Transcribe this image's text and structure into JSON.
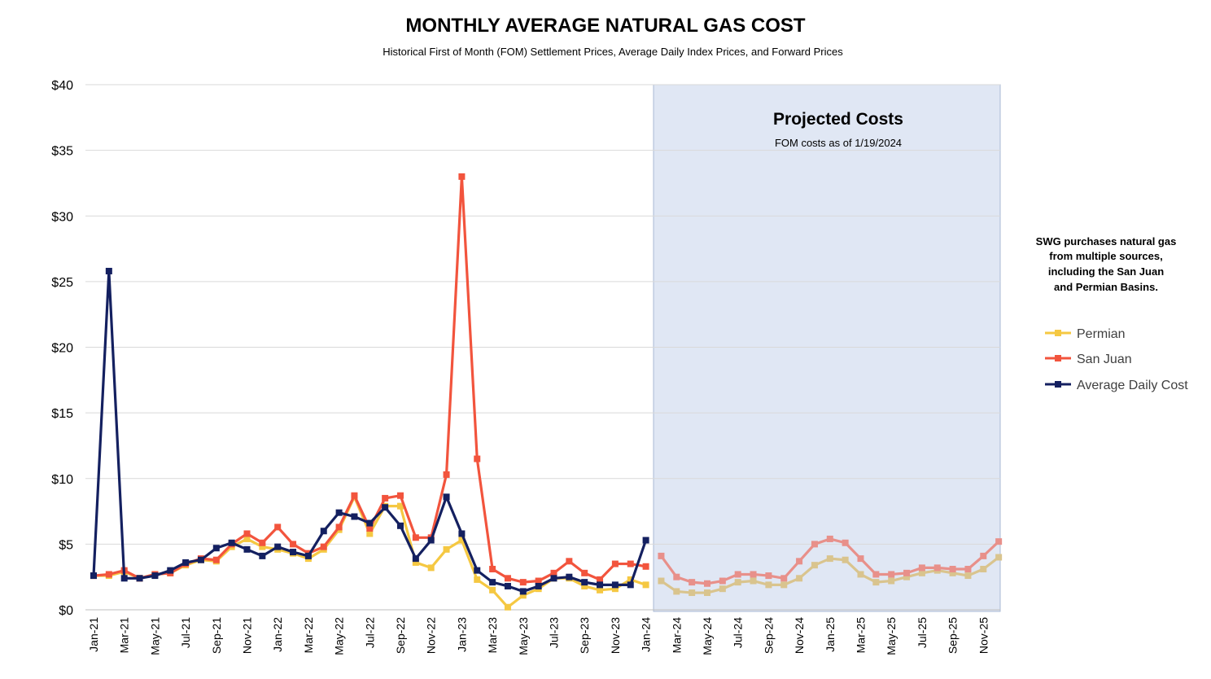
{
  "chart_data": {
    "type": "line",
    "title": "MONTHLY AVERAGE NATURAL GAS COST",
    "subtitle": "Historical First of Month (FOM) Settlement Prices, Average Daily Index Prices, and Forward Prices",
    "ylim": [
      0,
      40
    ],
    "y_ticks": [
      "$0",
      "$5",
      "$10",
      "$15",
      "$20",
      "$25",
      "$30",
      "$35",
      "$40"
    ],
    "y_tick_values": [
      0,
      5,
      10,
      15,
      20,
      25,
      30,
      35,
      40
    ],
    "x": [
      "Jan-21",
      "Feb-21",
      "Mar-21",
      "Apr-21",
      "May-21",
      "Jun-21",
      "Jul-21",
      "Aug-21",
      "Sep-21",
      "Oct-21",
      "Nov-21",
      "Dec-21",
      "Jan-22",
      "Feb-22",
      "Mar-22",
      "Apr-22",
      "May-22",
      "Jun-22",
      "Jul-22",
      "Aug-22",
      "Sep-22",
      "Oct-22",
      "Nov-22",
      "Dec-22",
      "Jan-23",
      "Feb-23",
      "Mar-23",
      "Apr-23",
      "May-23",
      "Jun-23",
      "Jul-23",
      "Aug-23",
      "Sep-23",
      "Oct-23",
      "Nov-23",
      "Dec-23",
      "Jan-24",
      "Feb-24",
      "Mar-24",
      "Apr-24",
      "May-24",
      "Jun-24",
      "Jul-24",
      "Aug-24",
      "Sep-24",
      "Oct-24",
      "Nov-24",
      "Dec-24",
      "Jan-25",
      "Feb-25",
      "Mar-25",
      "Apr-25",
      "May-25",
      "Jun-25",
      "Jul-25",
      "Aug-25",
      "Sep-25",
      "Oct-25",
      "Nov-25",
      "Dec-25"
    ],
    "x_tick_labels": [
      "Jan-21",
      "Mar-21",
      "May-21",
      "Jul-21",
      "Sep-21",
      "Nov-21",
      "Jan-22",
      "Mar-22",
      "May-22",
      "Jul-22",
      "Sep-22",
      "Nov-22",
      "Jan-23",
      "Mar-23",
      "May-23",
      "Jul-23",
      "Sep-23",
      "Nov-23",
      "Jan-24",
      "Mar-24",
      "May-24",
      "Jul-24",
      "Sep-24",
      "Nov-24",
      "Jan-25",
      "Mar-25",
      "May-25",
      "Jul-25",
      "Sep-25",
      "Nov-25"
    ],
    "projection_start": "Feb-24",
    "projection_label": "Projected Costs",
    "projection_sublabel": "FOM costs as of 1/19/2024",
    "series": [
      {
        "name": "Permian",
        "color": "#F5C842",
        "projected_color": "#D9C48E",
        "values": [
          2.6,
          2.6,
          2.9,
          2.4,
          2.7,
          2.8,
          3.4,
          3.8,
          3.7,
          4.8,
          5.4,
          4.8,
          4.6,
          4.3,
          3.9,
          4.6,
          6.1,
          8.6,
          5.8,
          7.9,
          7.9,
          3.6,
          3.2,
          4.6,
          5.3,
          2.3,
          1.5,
          0.2,
          1.1,
          1.6,
          2.4,
          2.4,
          1.8,
          1.5,
          1.6,
          2.3,
          1.9,
          2.2,
          1.4,
          1.3,
          1.3,
          1.6,
          2.1,
          2.2,
          1.9,
          1.9,
          2.4,
          3.4,
          3.9,
          3.8,
          2.7,
          2.1,
          2.2,
          2.5,
          2.8,
          3.0,
          2.8,
          2.6,
          3.1,
          4.0
        ]
      },
      {
        "name": "San Juan",
        "color": "#F2543D",
        "projected_color": "#E8908A",
        "values": [
          2.6,
          2.7,
          3.0,
          2.4,
          2.7,
          2.8,
          3.5,
          3.9,
          3.8,
          5.0,
          5.8,
          5.1,
          6.3,
          5.0,
          4.3,
          4.8,
          6.3,
          8.7,
          6.2,
          8.5,
          8.7,
          5.5,
          5.5,
          10.3,
          33.0,
          11.5,
          3.1,
          2.4,
          2.1,
          2.2,
          2.8,
          3.7,
          2.8,
          2.3,
          3.5,
          3.5,
          3.3,
          4.1,
          2.5,
          2.1,
          2.0,
          2.2,
          2.7,
          2.7,
          2.6,
          2.4,
          3.7,
          5.0,
          5.4,
          5.1,
          3.9,
          2.7,
          2.7,
          2.8,
          3.2,
          3.2,
          3.1,
          3.1,
          4.1,
          5.2
        ]
      },
      {
        "name": "Average Daily Cost",
        "color": "#142060",
        "values": [
          2.6,
          25.8,
          2.4,
          2.4,
          2.6,
          3.0,
          3.6,
          3.8,
          4.7,
          5.1,
          4.6,
          4.1,
          4.8,
          4.4,
          4.1,
          6.0,
          7.4,
          7.1,
          6.6,
          7.8,
          6.4,
          3.9,
          5.3,
          8.6,
          5.8,
          3.0,
          2.1,
          1.8,
          1.4,
          1.8,
          2.4,
          2.5,
          2.1,
          1.9,
          1.9,
          1.9,
          5.3,
          null,
          null,
          null,
          null,
          null,
          null,
          null,
          null,
          null,
          null,
          null,
          null,
          null,
          null,
          null,
          null,
          null,
          null,
          null,
          null,
          null,
          null,
          null
        ]
      }
    ],
    "grid": true,
    "legend_position": "right"
  },
  "side_note": {
    "lines": [
      "SWG purchases natural gas",
      "from multiple sources,",
      "including the San Juan",
      "and Permian Basins."
    ]
  },
  "legend": {
    "items": [
      "Permian",
      "San Juan",
      "Average Daily Cost"
    ]
  }
}
